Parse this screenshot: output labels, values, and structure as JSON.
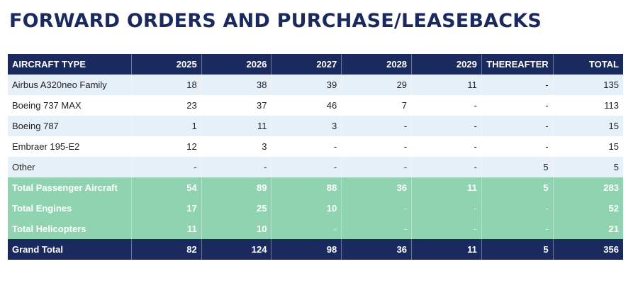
{
  "title": "FORWARD ORDERS AND PURCHASE/LEASEBACKS",
  "table": {
    "headers": [
      "AIRCRAFT TYPE",
      "2025",
      "2026",
      "2027",
      "2028",
      "2029",
      "THEREAFTER",
      "TOTAL"
    ],
    "rows": [
      {
        "style": "light",
        "cells": [
          "Airbus A320neo Family",
          "18",
          "38",
          "39",
          "29",
          "11",
          "-",
          "135"
        ]
      },
      {
        "style": "white",
        "cells": [
          "Boeing 737 MAX",
          "23",
          "37",
          "46",
          "7",
          "-",
          "-",
          "113"
        ]
      },
      {
        "style": "light",
        "cells": [
          "Boeing 787",
          "1",
          "11",
          "3",
          "-",
          "-",
          "-",
          "15"
        ]
      },
      {
        "style": "white",
        "cells": [
          "Embraer 195-E2",
          "12",
          "3",
          "-",
          "-",
          "-",
          "-",
          "15"
        ]
      },
      {
        "style": "light",
        "cells": [
          "Other",
          "-",
          "-",
          "-",
          "-",
          "-",
          "5",
          "5"
        ]
      },
      {
        "style": "green",
        "cells": [
          "Total Passenger Aircraft",
          "54",
          "89",
          "88",
          "36",
          "11",
          "5",
          "283"
        ]
      },
      {
        "style": "green",
        "cells": [
          "Total Engines",
          "17",
          "25",
          "10",
          "-",
          "-",
          "-",
          "52"
        ]
      },
      {
        "style": "green",
        "cells": [
          "Total Helicopters",
          "11",
          "10",
          "-",
          "-",
          "-",
          "-",
          "21"
        ]
      },
      {
        "style": "grand",
        "cells": [
          "Grand Total",
          "82",
          "124",
          "98",
          "36",
          "11",
          "5",
          "356"
        ]
      }
    ]
  },
  "colors": {
    "navy": "#1b2a5e",
    "light_row": "#e6f0f8",
    "green_row": "#8fd3b0"
  }
}
